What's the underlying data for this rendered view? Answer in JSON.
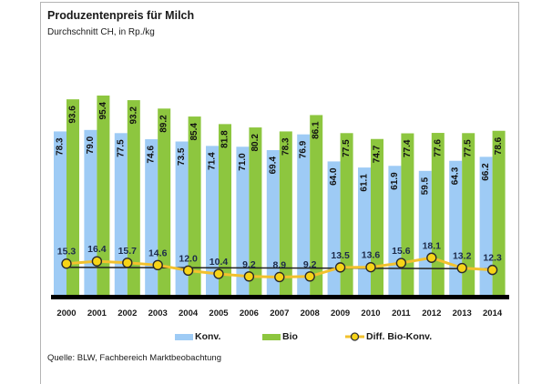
{
  "chart_data": {
    "type": "bar",
    "title": "Produzentenpreis für Milch",
    "subtitle": "Durchschnitt CH, in Rp./kg",
    "xlabel": "",
    "ylabel": "",
    "ylim": [
      0,
      100
    ],
    "grid": false,
    "legend_position": "bottom",
    "categories": [
      "2000",
      "2001",
      "2002",
      "2003",
      "2004",
      "2005",
      "2006",
      "2007",
      "2008",
      "2009",
      "2010",
      "2011",
      "2012",
      "2013",
      "2014"
    ],
    "series": [
      {
        "name": "Konv.",
        "type": "bar",
        "color": "#9ecbf5",
        "values": [
          78.3,
          79.0,
          77.5,
          74.6,
          73.5,
          71.4,
          71.0,
          69.4,
          76.9,
          64.0,
          61.1,
          61.9,
          59.5,
          64.3,
          66.2
        ],
        "labels": [
          "78.3",
          "79.0",
          "77.5",
          "74.6",
          "73.5",
          "71.4",
          "71.0",
          "69.4",
          "76.9",
          "64.0",
          "61.1",
          "61.9",
          "59.5",
          "64.3",
          "66.2"
        ]
      },
      {
        "name": "Bio",
        "type": "bar",
        "color": "#8dc63f",
        "values": [
          93.6,
          95.4,
          93.2,
          89.2,
          85.4,
          81.8,
          80.2,
          78.3,
          86.1,
          77.5,
          74.7,
          77.4,
          77.6,
          77.5,
          78.6
        ],
        "labels": [
          "93.6",
          "95.4",
          "93.2",
          "89.2",
          "85.4",
          "81.8",
          "80.2",
          "78.3",
          "86.1",
          "77.5",
          "74.7",
          "77.4",
          "77.6",
          "77.5",
          "78.6"
        ]
      },
      {
        "name": "Diff. Bio-Konv.",
        "type": "line",
        "color": "#f2c12e",
        "marker_color": "#f7d417",
        "trendline": "linear",
        "values": [
          15.3,
          16.4,
          15.7,
          14.6,
          12.0,
          10.4,
          9.2,
          8.9,
          9.2,
          13.5,
          13.6,
          15.6,
          18.1,
          13.2,
          12.3
        ],
        "labels": [
          "15.3",
          "16.4",
          "15.7",
          "14.6",
          "12.0",
          "10.4",
          "9.2",
          "8.9",
          "9.2",
          "13.5",
          "13.6",
          "15.6",
          "18.1",
          "13.2",
          "12.3"
        ]
      }
    ],
    "source_note": "Quelle: BLW, Fachbereich Marktbeobachtung"
  }
}
